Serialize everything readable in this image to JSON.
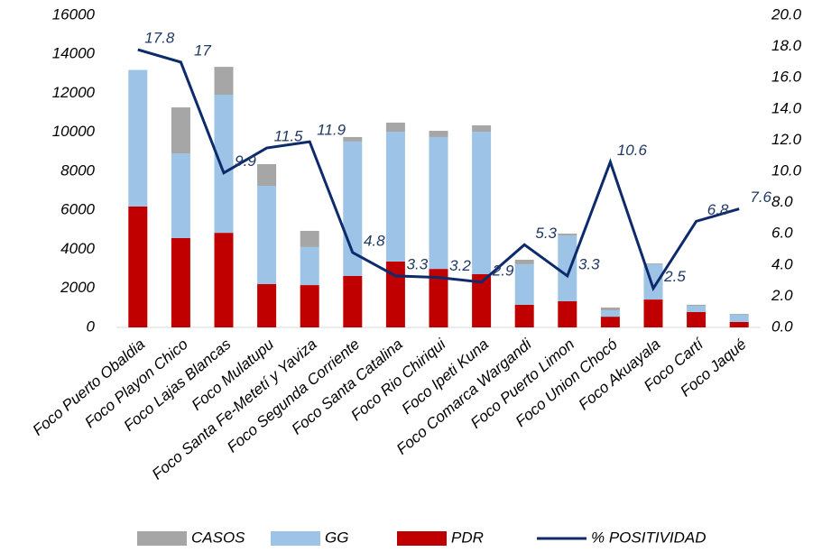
{
  "chart_data": {
    "type": "bar-line",
    "categories": [
      "Foco Puerto Obaldia",
      "Foco Playon Chico",
      "Foco Lajas Blancas",
      "Foco Mulatupu",
      "Foco Santa Fe-Metetí y Yaviza",
      "Foco Segunda Corriente",
      "Foco Santa Catalina",
      "Foco Rio Chiriqui",
      "Foco Ipeti Kuna",
      "Foco Comarca Wargandi",
      "Foco Puerto Limon",
      "Foco Union Chocó",
      "Foco Akuayala",
      "Foco Cartí",
      "Foco Jaqué"
    ],
    "series": [
      {
        "name": "CASOS",
        "color": "#a6a6a6",
        "values": [
          0,
          2360,
          1430,
          1110,
          830,
          230,
          470,
          320,
          330,
          230,
          90,
          140,
          40,
          50,
          40
        ]
      },
      {
        "name": "GG",
        "color": "#9dc3e6",
        "values": [
          7000,
          4340,
          7080,
          5040,
          1950,
          6890,
          6650,
          6760,
          7300,
          2080,
          3380,
          330,
          1810,
          320,
          370
        ]
      },
      {
        "name": "PDR",
        "color": "#c00000",
        "values": [
          6200,
          4580,
          4850,
          2220,
          2170,
          2640,
          3380,
          3000,
          2730,
          1160,
          1340,
          550,
          1430,
          790,
          280
        ]
      },
      {
        "name": "% POSITIVIDAD",
        "color": "#0d2a6b",
        "axis": "y2",
        "values": [
          17.8,
          17.0,
          9.9,
          11.5,
          11.9,
          4.8,
          3.3,
          3.2,
          2.9,
          5.3,
          3.3,
          10.6,
          2.5,
          6.8,
          7.6
        ]
      }
    ],
    "ylim": [
      0,
      16000
    ],
    "yticks": [
      0,
      2000,
      4000,
      6000,
      8000,
      10000,
      12000,
      14000,
      16000
    ],
    "y2lim": [
      0,
      20
    ],
    "y2ticks": [
      {
        "value": 0,
        "label": "0.0"
      },
      {
        "value": 2,
        "label": "2.0"
      },
      {
        "value": 4,
        "label": "4.0"
      },
      {
        "value": 6,
        "label": "6.0"
      },
      {
        "value": 8,
        "label": "8.0"
      },
      {
        "value": 10,
        "label": "10.0"
      },
      {
        "value": 12,
        "label": "12.0"
      },
      {
        "value": 14,
        "label": "14.0"
      },
      {
        "value": 16,
        "label": "16.0"
      },
      {
        "value": 18,
        "label": "18.0"
      },
      {
        "value": 20,
        "label": "20.0"
      }
    ],
    "grid": false,
    "legend": "bottom"
  }
}
